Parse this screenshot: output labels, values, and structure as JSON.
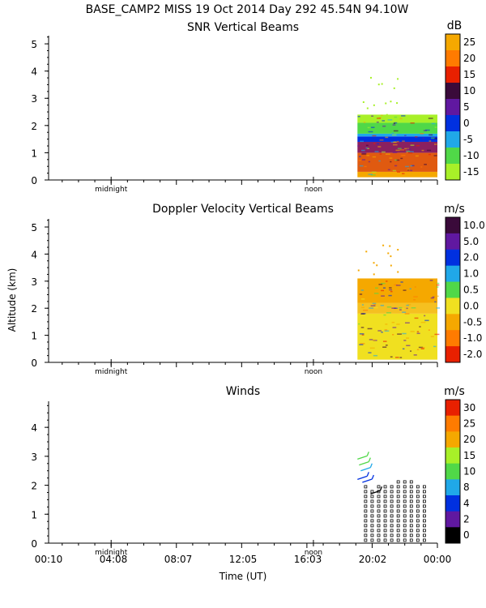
{
  "header": {
    "title": "BASE_CAMP2 MISS  19 Oct 2014 Day 292 45.54N  94.10W",
    "ylabel": "Altitude (km)",
    "xlabel": "Time (UT)",
    "time_ticks": [
      "00:10",
      "04:08",
      "08:07",
      "12:05",
      "16:03",
      "20:02",
      "00:00"
    ],
    "marker_midnight": "midnight",
    "marker_noon": "noon"
  },
  "chart_data": [
    {
      "type": "heatmap",
      "title": "SNR Vertical Beams",
      "units": "dB",
      "xlabel": "Time (UT)",
      "ylabel": "Altitude (km)",
      "xlim": [
        0.1667,
        24.0
      ],
      "ylim": [
        0,
        5.3
      ],
      "y_ticks": [
        "0",
        "1",
        "2",
        "3",
        "4",
        "5"
      ],
      "colorbar_labels": [
        "25",
        "20",
        "15",
        "10",
        "5",
        "0",
        "-5",
        "-10",
        "-15"
      ],
      "colorbar_colors": [
        "#f5a800",
        "#ff7b00",
        "#e82000",
        "#3a0a3a",
        "#6018a0",
        "#0030e0",
        "#20a8e8",
        "#50d848",
        "#a8f028"
      ],
      "data_start_hour": 19.1,
      "data_end_hour": 24.0,
      "layers": [
        {
          "bottom_km": 0.0,
          "top_km": 0.3,
          "color": "#f5a800"
        },
        {
          "bottom_km": 0.3,
          "top_km": 1.0,
          "color": "#e05a10"
        },
        {
          "bottom_km": 1.0,
          "top_km": 1.4,
          "color": "#8a2060"
        },
        {
          "bottom_km": 1.4,
          "top_km": 1.6,
          "color": "#0030e0"
        },
        {
          "bottom_km": 1.6,
          "top_km": 1.7,
          "color": "#20a8e8"
        },
        {
          "bottom_km": 1.7,
          "top_km": 2.1,
          "color": "#50d848"
        },
        {
          "bottom_km": 2.1,
          "top_km": 2.4,
          "color": "#a8f028"
        }
      ]
    },
    {
      "type": "heatmap",
      "title": "Doppler Velocity Vertical Beams",
      "units": "m/s",
      "xlabel": "Time (UT)",
      "ylabel": "Altitude (km)",
      "xlim": [
        0.1667,
        24.0
      ],
      "ylim": [
        0,
        5.3
      ],
      "y_ticks": [
        "0",
        "1",
        "2",
        "3",
        "4",
        "5"
      ],
      "colorbar_labels": [
        "10.0",
        "5.0",
        "2.0",
        "1.0",
        "0.5",
        "0.0",
        "-0.5",
        "-1.0",
        "-2.0"
      ],
      "colorbar_colors": [
        "#3a0a3a",
        "#6018a0",
        "#0030e0",
        "#20a8e8",
        "#50d848",
        "#f0e020",
        "#f5a800",
        "#ff7b00",
        "#e82000"
      ],
      "data_start_hour": 19.1,
      "data_end_hour": 24.0,
      "layers": [
        {
          "bottom_km": 0.0,
          "top_km": 1.8,
          "color": "#f0e020"
        },
        {
          "bottom_km": 1.8,
          "top_km": 2.2,
          "color": "#f5c020"
        },
        {
          "bottom_km": 2.2,
          "top_km": 3.1,
          "color": "#f5a800"
        }
      ]
    },
    {
      "type": "scatter",
      "title": "Winds",
      "units": "m/s",
      "xlabel": "Time (UT)",
      "ylabel": "Altitude (km)",
      "xlim": [
        0.1667,
        24.0
      ],
      "ylim": [
        0,
        4.9
      ],
      "y_ticks": [
        "0",
        "1",
        "2",
        "3",
        "4"
      ],
      "colorbar_labels": [
        "30",
        "25",
        "20",
        "15",
        "10",
        "8",
        "4",
        "2",
        "0"
      ],
      "colorbar_colors": [
        "#e82000",
        "#ff7b00",
        "#f5a800",
        "#a8f028",
        "#50d848",
        "#20a8e8",
        "#0030e0",
        "#6018a0",
        "#000000"
      ],
      "profile_hours": [
        19.6,
        20.0,
        20.4,
        20.8,
        21.2,
        21.6,
        22.0,
        22.4,
        22.8,
        23.2
      ],
      "profile_tops_km": [
        2.0,
        1.9,
        2.1,
        2.1,
        2.1,
        2.2,
        2.2,
        2.2,
        2.1,
        2.1
      ],
      "barbs": [
        {
          "hour": 19.1,
          "alt_km": 2.9,
          "color": "#50d848"
        },
        {
          "hour": 19.2,
          "alt_km": 2.7,
          "color": "#50d848"
        },
        {
          "hour": 19.3,
          "alt_km": 2.5,
          "color": "#20a8e8"
        },
        {
          "hour": 19.1,
          "alt_km": 2.2,
          "color": "#0030e0"
        },
        {
          "hour": 19.4,
          "alt_km": 2.1,
          "color": "#0030e0"
        },
        {
          "hour": 19.9,
          "alt_km": 1.7,
          "color": "#000000"
        }
      ]
    }
  ]
}
